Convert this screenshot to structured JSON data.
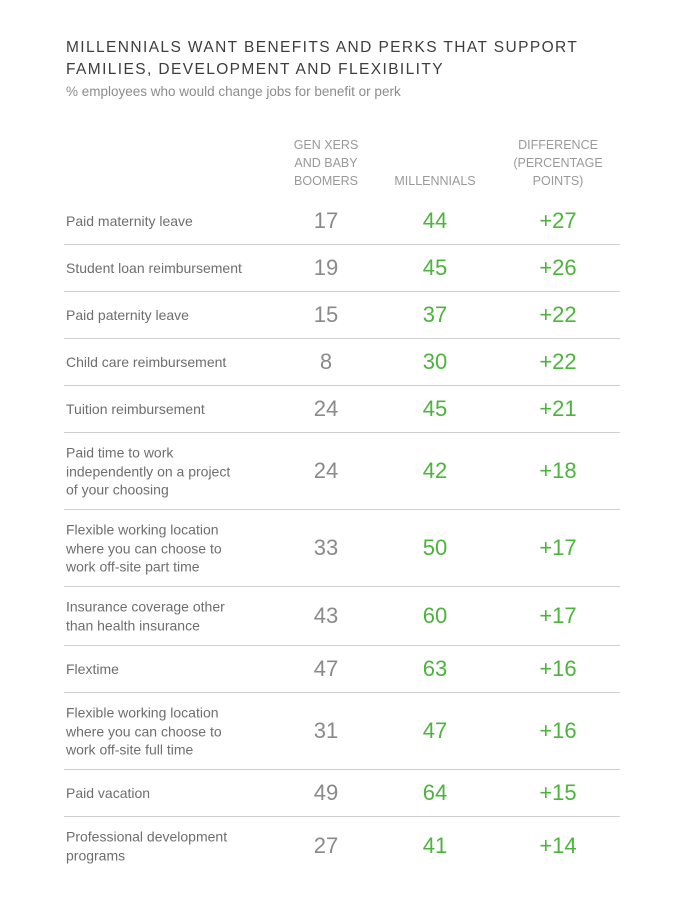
{
  "chart_data": {
    "type": "table",
    "title": "MILLENNIALS WANT BENEFITS AND PERKS THAT SUPPORT FAMILIES, DEVELOPMENT AND FLEXIBILITY",
    "title_lines": [
      "MILLENNIALS WANT BENEFITS AND PERKS THAT SUPPORT",
      "FAMILIES, DEVELOPMENT AND FLEXIBILITY"
    ],
    "subtitle": "% employees who would change jobs for benefit or perk",
    "columns": [
      {
        "key": "genx_boomers",
        "lines": [
          "GEN XERS",
          "AND BABY",
          "BOOMERS"
        ]
      },
      {
        "key": "millennials",
        "lines": [
          "MILLENNIALS"
        ]
      },
      {
        "key": "difference",
        "lines": [
          "DIFFERENCE",
          "(PERCENTAGE",
          "POINTS)"
        ]
      }
    ],
    "rows": [
      {
        "benefit": "Paid maternity leave",
        "label_lines": [
          "Paid maternity leave"
        ],
        "genx_boomers": 17,
        "millennials": 44,
        "difference": "+27"
      },
      {
        "benefit": "Student loan reimbursement",
        "label_lines": [
          "Student loan reimbursement"
        ],
        "genx_boomers": 19,
        "millennials": 45,
        "difference": "+26"
      },
      {
        "benefit": "Paid paternity leave",
        "label_lines": [
          "Paid paternity leave"
        ],
        "genx_boomers": 15,
        "millennials": 37,
        "difference": "+22"
      },
      {
        "benefit": "Child care reimbursement",
        "label_lines": [
          "Child care reimbursement"
        ],
        "genx_boomers": 8,
        "millennials": 30,
        "difference": "+22"
      },
      {
        "benefit": "Tuition reimbursement",
        "label_lines": [
          "Tuition reimbursement"
        ],
        "genx_boomers": 24,
        "millennials": 45,
        "difference": "+21"
      },
      {
        "benefit": "Paid time to work independently on a project of your choosing",
        "label_lines": [
          "Paid time to work",
          "independently on a project",
          "of your choosing"
        ],
        "genx_boomers": 24,
        "millennials": 42,
        "difference": "+18"
      },
      {
        "benefit": "Flexible working location where you can choose to work off-site part time",
        "label_lines": [
          "Flexible working location",
          "where you can choose to",
          "work off-site part time"
        ],
        "genx_boomers": 33,
        "millennials": 50,
        "difference": "+17"
      },
      {
        "benefit": "Insurance coverage other than health insurance",
        "label_lines": [
          "Insurance coverage other",
          "than health insurance"
        ],
        "genx_boomers": 43,
        "millennials": 60,
        "difference": "+17"
      },
      {
        "benefit": "Flextime",
        "label_lines": [
          "Flextime"
        ],
        "genx_boomers": 47,
        "millennials": 63,
        "difference": "+16"
      },
      {
        "benefit": "Flexible working location where you can choose to work off-site full time",
        "label_lines": [
          "Flexible working location",
          "where you can choose to",
          "work off-site full time"
        ],
        "genx_boomers": 31,
        "millennials": 47,
        "difference": "+16"
      },
      {
        "benefit": "Paid vacation",
        "label_lines": [
          "Paid vacation"
        ],
        "genx_boomers": 49,
        "millennials": 64,
        "difference": "+15"
      },
      {
        "benefit": "Professional development programs",
        "label_lines": [
          "Professional development",
          "programs"
        ],
        "genx_boomers": 27,
        "millennials": 41,
        "difference": "+14"
      }
    ]
  },
  "colors": {
    "title": "#3d3d3d",
    "subtitle": "#8c8c8c",
    "header": "#999999",
    "label": "#6e6e6e",
    "genx_value": "#8a8a8a",
    "millennial_value": "#4cb43c",
    "difference_value": "#4cb43c",
    "divider": "#cfcfcf"
  }
}
